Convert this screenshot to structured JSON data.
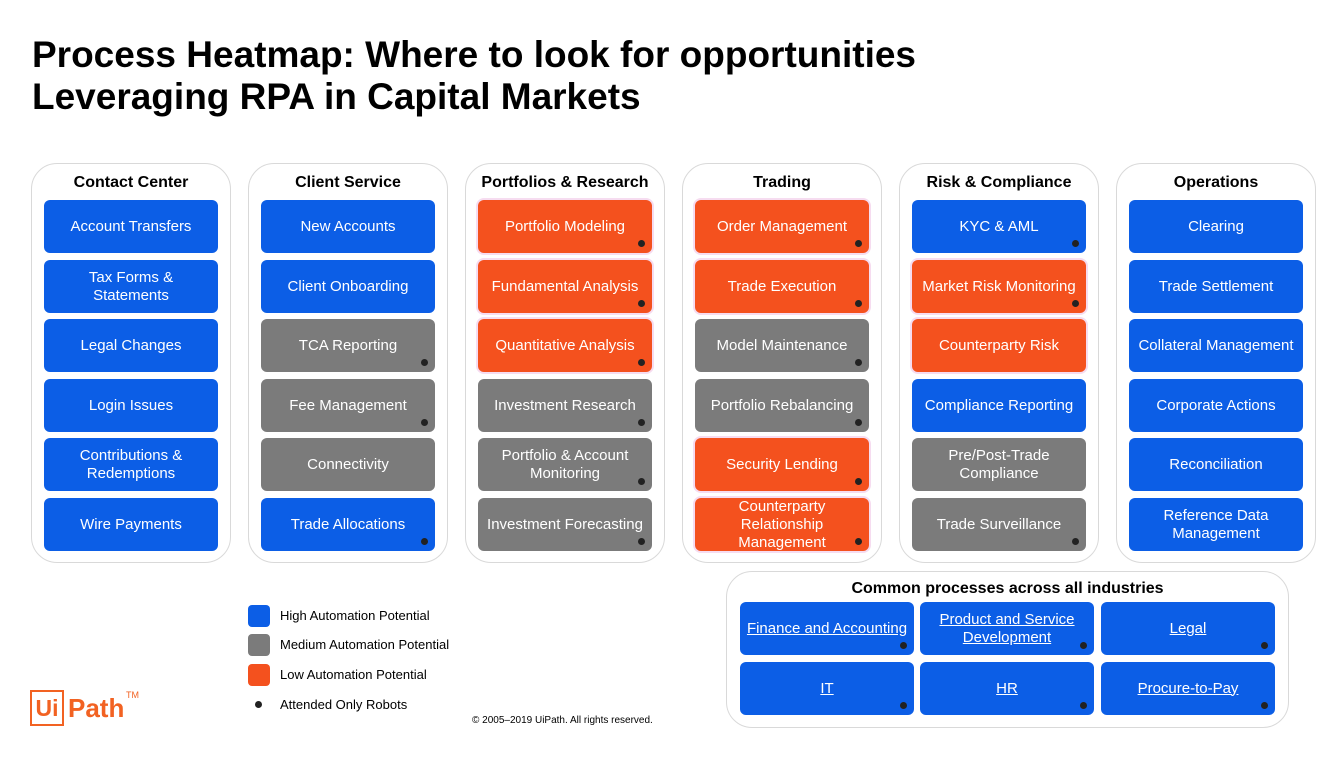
{
  "title": {
    "line1": "Process Heatmap: Where to look for opportunities",
    "line2": "Leveraging RPA in Capital Markets"
  },
  "colors": {
    "high": "#0c5ee6",
    "medium": "#7b7b7b",
    "low": "#f4511e",
    "brand": "#f26222"
  },
  "columns": [
    {
      "header": "Contact Center",
      "items": [
        {
          "label": "Account Transfers",
          "level": "high",
          "attended": false
        },
        {
          "label": "Tax Forms & Statements",
          "level": "high",
          "attended": false
        },
        {
          "label": "Legal Changes",
          "level": "high",
          "attended": false
        },
        {
          "label": "Login Issues",
          "level": "high",
          "attended": false
        },
        {
          "label": "Contributions & Redemptions",
          "level": "high",
          "attended": false
        },
        {
          "label": "Wire Payments",
          "level": "high",
          "attended": false
        }
      ]
    },
    {
      "header": "Client Service",
      "items": [
        {
          "label": "New Accounts",
          "level": "high",
          "attended": false
        },
        {
          "label": "Client Onboarding",
          "level": "high",
          "attended": false
        },
        {
          "label": "TCA Reporting",
          "level": "medium",
          "attended": true
        },
        {
          "label": "Fee Management",
          "level": "medium",
          "attended": true
        },
        {
          "label": "Connectivity",
          "level": "medium",
          "attended": false
        },
        {
          "label": "Trade Allocations",
          "level": "high",
          "attended": true
        }
      ]
    },
    {
      "header": "Portfolios & Research",
      "items": [
        {
          "label": "Portfolio Modeling",
          "level": "low",
          "attended": true
        },
        {
          "label": "Fundamental Analysis",
          "level": "low",
          "attended": true
        },
        {
          "label": "Quantitative Analysis",
          "level": "low",
          "attended": true
        },
        {
          "label": "Investment Research",
          "level": "medium",
          "attended": true
        },
        {
          "label": "Portfolio & Account Monitoring",
          "level": "medium",
          "attended": true
        },
        {
          "label": "Investment Forecasting",
          "level": "medium",
          "attended": true
        }
      ]
    },
    {
      "header": "Trading",
      "items": [
        {
          "label": "Order Management",
          "level": "low",
          "attended": true
        },
        {
          "label": "Trade Execution",
          "level": "low",
          "attended": true
        },
        {
          "label": "Model Maintenance",
          "level": "medium",
          "attended": true
        },
        {
          "label": "Portfolio Rebalancing",
          "level": "medium",
          "attended": true
        },
        {
          "label": "Security Lending",
          "level": "low",
          "attended": true
        },
        {
          "label": "Counterparty Relationship Management",
          "level": "low",
          "attended": true
        }
      ]
    },
    {
      "header": "Risk & Compliance",
      "items": [
        {
          "label": "KYC & AML",
          "level": "high",
          "attended": true
        },
        {
          "label": "Market Risk Monitoring",
          "level": "low",
          "attended": true
        },
        {
          "label": "Counterparty Risk",
          "level": "low",
          "attended": false
        },
        {
          "label": "Compliance Reporting",
          "level": "high",
          "attended": false
        },
        {
          "label": "Pre/Post-Trade Compliance",
          "level": "medium",
          "attended": false
        },
        {
          "label": "Trade Surveillance",
          "level": "medium",
          "attended": true
        }
      ]
    },
    {
      "header": "Operations",
      "items": [
        {
          "label": "Clearing",
          "level": "high",
          "attended": false
        },
        {
          "label": "Trade Settlement",
          "level": "high",
          "attended": false
        },
        {
          "label": "Collateral Management",
          "level": "high",
          "attended": false
        },
        {
          "label": "Corporate Actions",
          "level": "high",
          "attended": false
        },
        {
          "label": "Reconciliation",
          "level": "high",
          "attended": false
        },
        {
          "label": "Reference Data Management",
          "level": "high",
          "attended": false
        }
      ]
    }
  ],
  "common": {
    "header": "Common processes across all industries",
    "items": [
      {
        "label": "Finance and Accounting",
        "attended": true
      },
      {
        "label": "Product and Service Development",
        "attended": true
      },
      {
        "label": "Legal",
        "attended": true
      },
      {
        "label": "IT",
        "attended": true
      },
      {
        "label": "HR",
        "attended": true
      },
      {
        "label": "Procure-to-Pay",
        "attended": true
      }
    ]
  },
  "legend": [
    {
      "label": "High Automation Potential",
      "kind": "high"
    },
    {
      "label": "Medium Automation Potential",
      "kind": "medium"
    },
    {
      "label": "Low Automation Potential",
      "kind": "low"
    },
    {
      "label": "Attended Only Robots",
      "kind": "dot"
    }
  ],
  "logo": {
    "ui": "Ui",
    "path": "Path",
    "tm": "TM"
  },
  "copyright": "© 2005–2019 UiPath. All rights reserved."
}
